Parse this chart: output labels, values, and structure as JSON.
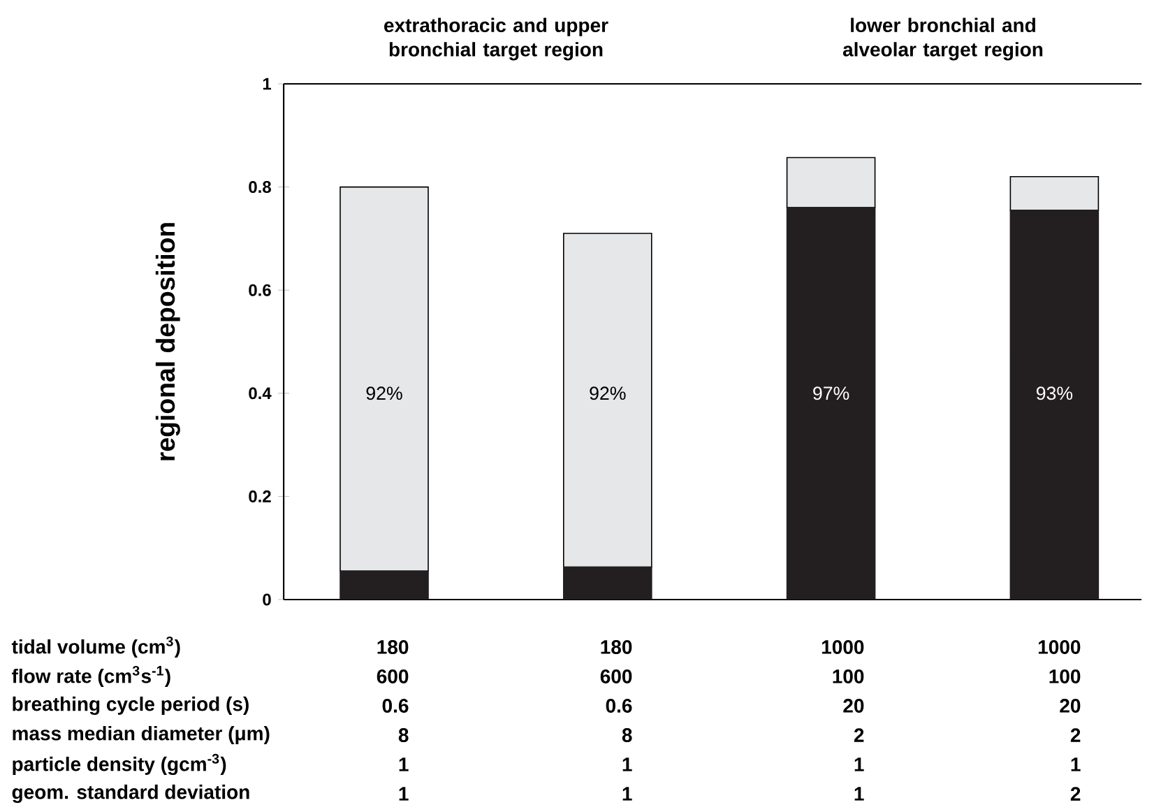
{
  "chart_data": {
    "type": "bar",
    "stacked": true,
    "ylabel": "regional deposition",
    "categories": [
      null,
      null,
      null,
      null
    ],
    "series": [
      {
        "color": "#231f20",
        "values": [
          0.055,
          0.063,
          0.76,
          0.755
        ]
      },
      {
        "color": "#e6e7e8",
        "values": [
          0.745,
          0.647,
          0.097,
          0.065
        ]
      }
    ],
    "ylim": [
      0,
      1
    ],
    "yticks": [
      0,
      0.2,
      0.4,
      0.6,
      0.8,
      1
    ],
    "annotations": [
      "extrathoracic and upper bronchial target region",
      "lower bronchial and alveolar target region",
      "92%",
      "92%",
      "97%",
      "93%",
      "tidal volume (cm$^{3}$)",
      "180",
      "180",
      "1000",
      "1000",
      "flow rate (cm$^{3}$s$^{-1}$)",
      "600",
      "600",
      "100",
      "100",
      "breathing cycle period (s)",
      "0.6",
      "0.6",
      "20",
      "20",
      "mass median diameter (μm)",
      "8",
      "8",
      "2",
      "2",
      "particle density (gcm$^{-3}$)",
      "1",
      "1",
      "1",
      "1",
      "geom. standard deviation",
      "1",
      "1",
      "1",
      "2"
    ]
  }
}
